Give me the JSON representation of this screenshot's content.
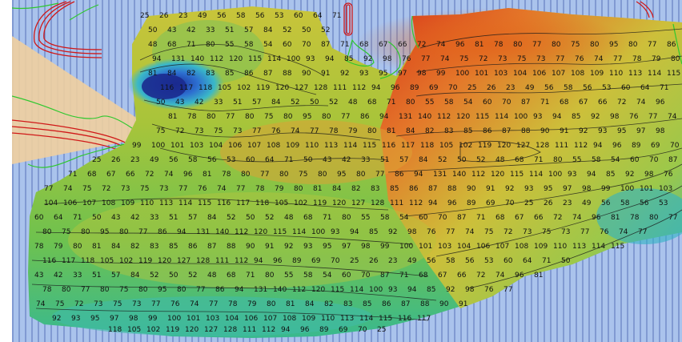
{
  "colors": {
    "water": "#aac3ec",
    "track_line": "#5870b8",
    "land_wedge": "#efcfa0",
    "coastline": "#2ec82e",
    "restricted_line": "#d01818",
    "contour": "#1a1a1a",
    "deep": "#1f3fb0",
    "shallow": "#d83a10"
  },
  "soundings": [
    {
      "v": "25"
    },
    {
      "v": "26"
    },
    {
      "v": "23"
    },
    {
      "v": "49"
    },
    {
      "v": "56"
    },
    {
      "v": "58"
    },
    {
      "v": "56"
    },
    {
      "v": "53"
    },
    {
      "v": "60"
    },
    {
      "v": "64"
    },
    {
      "v": "71"
    },
    {
      "v": "50"
    },
    {
      "v": "43"
    },
    {
      "v": "42"
    },
    {
      "v": "33"
    },
    {
      "v": "51"
    },
    {
      "v": "57"
    },
    {
      "v": "84"
    },
    {
      "v": "52"
    },
    {
      "v": "50"
    },
    {
      "v": "52"
    },
    {
      "v": "48"
    },
    {
      "v": "68"
    },
    {
      "v": "71"
    },
    {
      "v": "80"
    },
    {
      "v": "55"
    },
    {
      "v": "58"
    },
    {
      "v": "54"
    },
    {
      "v": "60"
    },
    {
      "v": "70"
    },
    {
      "v": "87"
    },
    {
      "v": "71"
    },
    {
      "v": "68"
    },
    {
      "v": "67"
    },
    {
      "v": "66"
    },
    {
      "v": "72"
    },
    {
      "v": "74"
    },
    {
      "v": "96"
    },
    {
      "v": "81"
    },
    {
      "v": "78"
    },
    {
      "v": "80"
    },
    {
      "v": "77"
    },
    {
      "v": "80"
    },
    {
      "v": "75"
    },
    {
      "v": "80"
    },
    {
      "v": "95"
    },
    {
      "v": "80"
    },
    {
      "v": "77"
    },
    {
      "v": "86"
    },
    {
      "v": "94"
    },
    {
      "v": "131"
    },
    {
      "v": "140"
    },
    {
      "v": "112"
    },
    {
      "v": "120"
    },
    {
      "v": "115"
    },
    {
      "v": "114"
    },
    {
      "v": "100"
    },
    {
      "v": "93"
    },
    {
      "v": "94"
    },
    {
      "v": "85"
    },
    {
      "v": "92"
    },
    {
      "v": "98"
    },
    {
      "v": "76"
    },
    {
      "v": "77"
    },
    {
      "v": "74"
    },
    {
      "v": "75"
    },
    {
      "v": "72"
    },
    {
      "v": "73"
    },
    {
      "v": "75"
    },
    {
      "v": "73"
    },
    {
      "v": "77"
    },
    {
      "v": "76"
    },
    {
      "v": "74"
    },
    {
      "v": "77"
    },
    {
      "v": "78"
    },
    {
      "v": "79"
    },
    {
      "v": "80"
    },
    {
      "v": "81"
    },
    {
      "v": "84"
    },
    {
      "v": "82"
    },
    {
      "v": "83"
    },
    {
      "v": "85"
    },
    {
      "v": "86"
    },
    {
      "v": "87"
    },
    {
      "v": "88"
    },
    {
      "v": "90"
    },
    {
      "v": "91"
    },
    {
      "v": "92"
    },
    {
      "v": "93"
    },
    {
      "v": "95"
    },
    {
      "v": "97"
    },
    {
      "v": "98"
    },
    {
      "v": "99"
    },
    {
      "v": "100"
    },
    {
      "v": "101"
    },
    {
      "v": "103"
    },
    {
      "v": "104"
    },
    {
      "v": "106"
    },
    {
      "v": "107"
    },
    {
      "v": "108"
    },
    {
      "v": "109"
    },
    {
      "v": "110"
    },
    {
      "v": "113"
    },
    {
      "v": "114"
    },
    {
      "v": "115"
    },
    {
      "v": "116"
    },
    {
      "v": "117"
    },
    {
      "v": "118"
    },
    {
      "v": "105"
    },
    {
      "v": "102"
    },
    {
      "v": "119"
    },
    {
      "v": "120"
    },
    {
      "v": "127"
    },
    {
      "v": "128"
    },
    {
      "v": "111"
    },
    {
      "v": "112"
    },
    {
      "v": "94"
    },
    {
      "v": "96"
    },
    {
      "v": "89"
    },
    {
      "v": "69"
    },
    {
      "v": "70"
    }
  ]
}
